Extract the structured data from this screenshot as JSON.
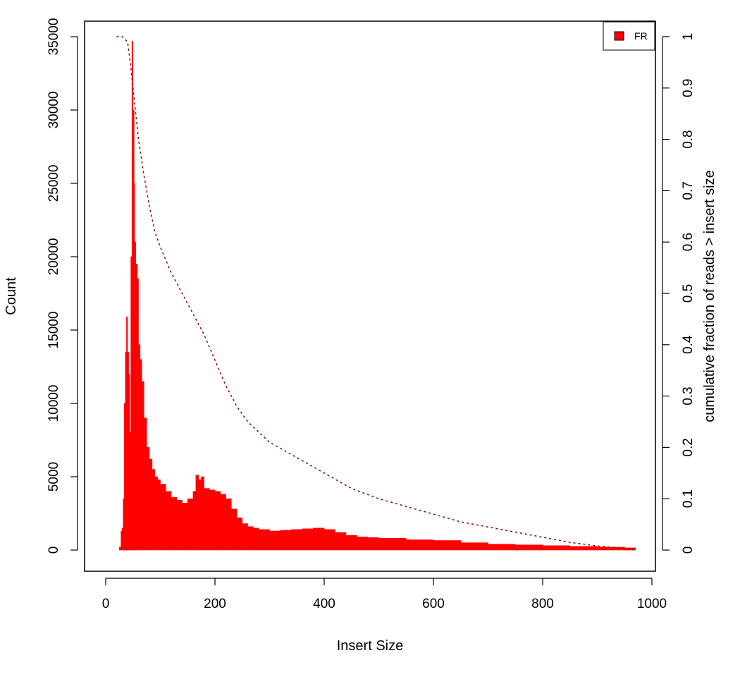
{
  "chart_data": {
    "type": "bar",
    "title": "",
    "xlabel": "Insert Size",
    "ylabel": "Count",
    "y2label": "cumulative fraction of reads > insert size",
    "xlim": [
      0,
      1000
    ],
    "ylim": [
      0,
      35000
    ],
    "y2lim": [
      0,
      1
    ],
    "x_ticks": [
      0,
      200,
      400,
      600,
      800,
      1000
    ],
    "y_ticks": [
      0,
      5000,
      10000,
      15000,
      20000,
      25000,
      30000,
      35000
    ],
    "y2_ticks": [
      0,
      0.1,
      0.2,
      0.3,
      0.4,
      0.5,
      0.6,
      0.7,
      0.8,
      0.9,
      1
    ],
    "x_tick_labels": [
      "0",
      "200",
      "400",
      "600",
      "800",
      "1000"
    ],
    "y_tick_labels": [
      "0",
      "5000",
      "10000",
      "15000",
      "20000",
      "25000",
      "30000",
      "35000"
    ],
    "y2_tick_labels": [
      "0",
      "0.1",
      "0.2",
      "0.3",
      "0.4",
      "0.5",
      "0.6",
      "0.7",
      "0.8",
      "0.9",
      "1"
    ],
    "grid": false,
    "legend": {
      "position": "top-right",
      "entries": [
        {
          "name": "FR",
          "color": "#ff0000"
        }
      ]
    },
    "series": [
      {
        "name": "FR",
        "kind": "histogram",
        "color": "#ff0000",
        "x": [
          20,
          25,
          28,
          30,
          32,
          34,
          36,
          38,
          40,
          42,
          44,
          46,
          48,
          50,
          52,
          53,
          55,
          58,
          60,
          63,
          66,
          70,
          75,
          80,
          85,
          90,
          95,
          100,
          110,
          120,
          130,
          140,
          150,
          160,
          165,
          170,
          175,
          180,
          190,
          200,
          210,
          220,
          230,
          240,
          250,
          260,
          270,
          280,
          300,
          320,
          340,
          360,
          380,
          400,
          420,
          440,
          460,
          480,
          500,
          550,
          600,
          650,
          700,
          750,
          800,
          850,
          900,
          950,
          970
        ],
        "values": [
          0,
          200,
          1300,
          1500,
          3500,
          10000,
          13500,
          15900,
          13500,
          12000,
          8000,
          20000,
          34700,
          30000,
          25000,
          21000,
          19500,
          18500,
          14000,
          13000,
          11500,
          9000,
          7000,
          6200,
          5500,
          5000,
          4800,
          4500,
          4000,
          3600,
          3400,
          3200,
          3500,
          4000,
          5100,
          4800,
          5000,
          4200,
          4100,
          4000,
          3800,
          3500,
          2800,
          2200,
          1800,
          1600,
          1500,
          1400,
          1300,
          1350,
          1400,
          1450,
          1500,
          1400,
          1200,
          1000,
          900,
          850,
          800,
          700,
          650,
          500,
          400,
          350,
          300,
          250,
          200,
          150,
          100
        ]
      },
      {
        "name": "cumulative fraction of reads > insert size",
        "kind": "line",
        "style": "dotted",
        "color": "#8b0000",
        "axis": "right",
        "x": [
          20,
          30,
          40,
          45,
          50,
          55,
          60,
          70,
          80,
          90,
          100,
          120,
          140,
          160,
          180,
          200,
          220,
          240,
          260,
          280,
          300,
          350,
          400,
          450,
          500,
          550,
          600,
          650,
          700,
          750,
          800,
          850,
          900,
          950,
          970
        ],
        "values": [
          1.0,
          1.0,
          0.99,
          0.95,
          0.9,
          0.85,
          0.8,
          0.73,
          0.67,
          0.62,
          0.59,
          0.54,
          0.5,
          0.46,
          0.42,
          0.37,
          0.32,
          0.28,
          0.25,
          0.23,
          0.21,
          0.18,
          0.15,
          0.12,
          0.1,
          0.085,
          0.07,
          0.055,
          0.045,
          0.035,
          0.025,
          0.015,
          0.008,
          0.003,
          0.0
        ]
      }
    ]
  }
}
